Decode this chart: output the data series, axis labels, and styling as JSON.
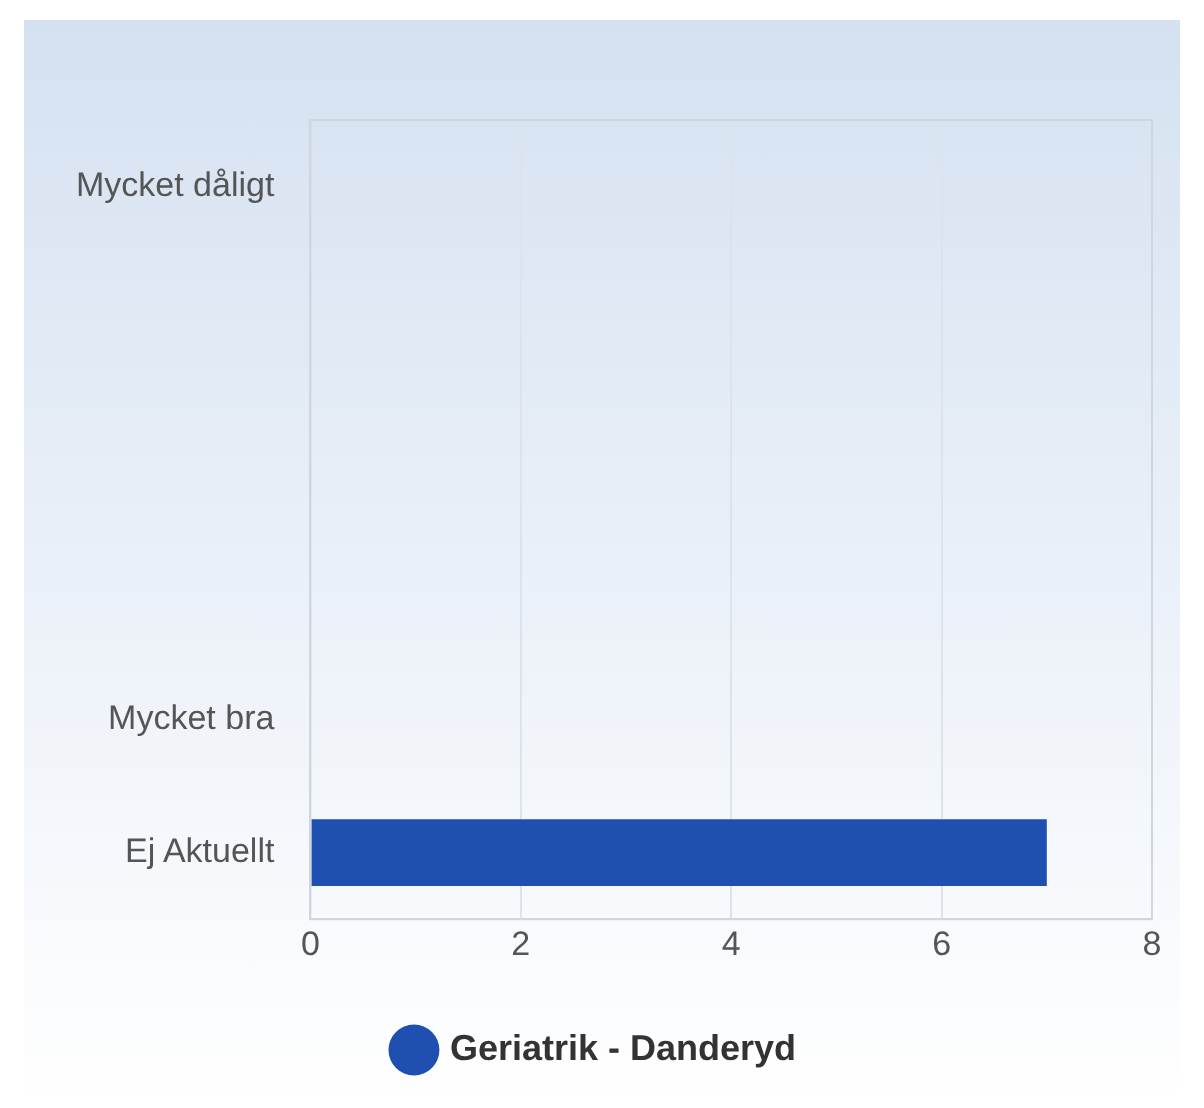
{
  "chart_data": {
    "type": "bar",
    "orientation": "horizontal",
    "categories": [
      "Mycket dåligt",
      null,
      null,
      null,
      "Mycket bra",
      "Ej Aktuellt"
    ],
    "series": [
      {
        "name": "Geriatrik - Danderyd",
        "color": "#1f4fb0",
        "values": [
          0,
          0,
          0,
          0,
          0,
          7
        ]
      }
    ],
    "xlim": [
      0,
      8
    ],
    "xticks": [
      0,
      2,
      4,
      6,
      8
    ],
    "grid": "x",
    "legend": "bottom"
  }
}
